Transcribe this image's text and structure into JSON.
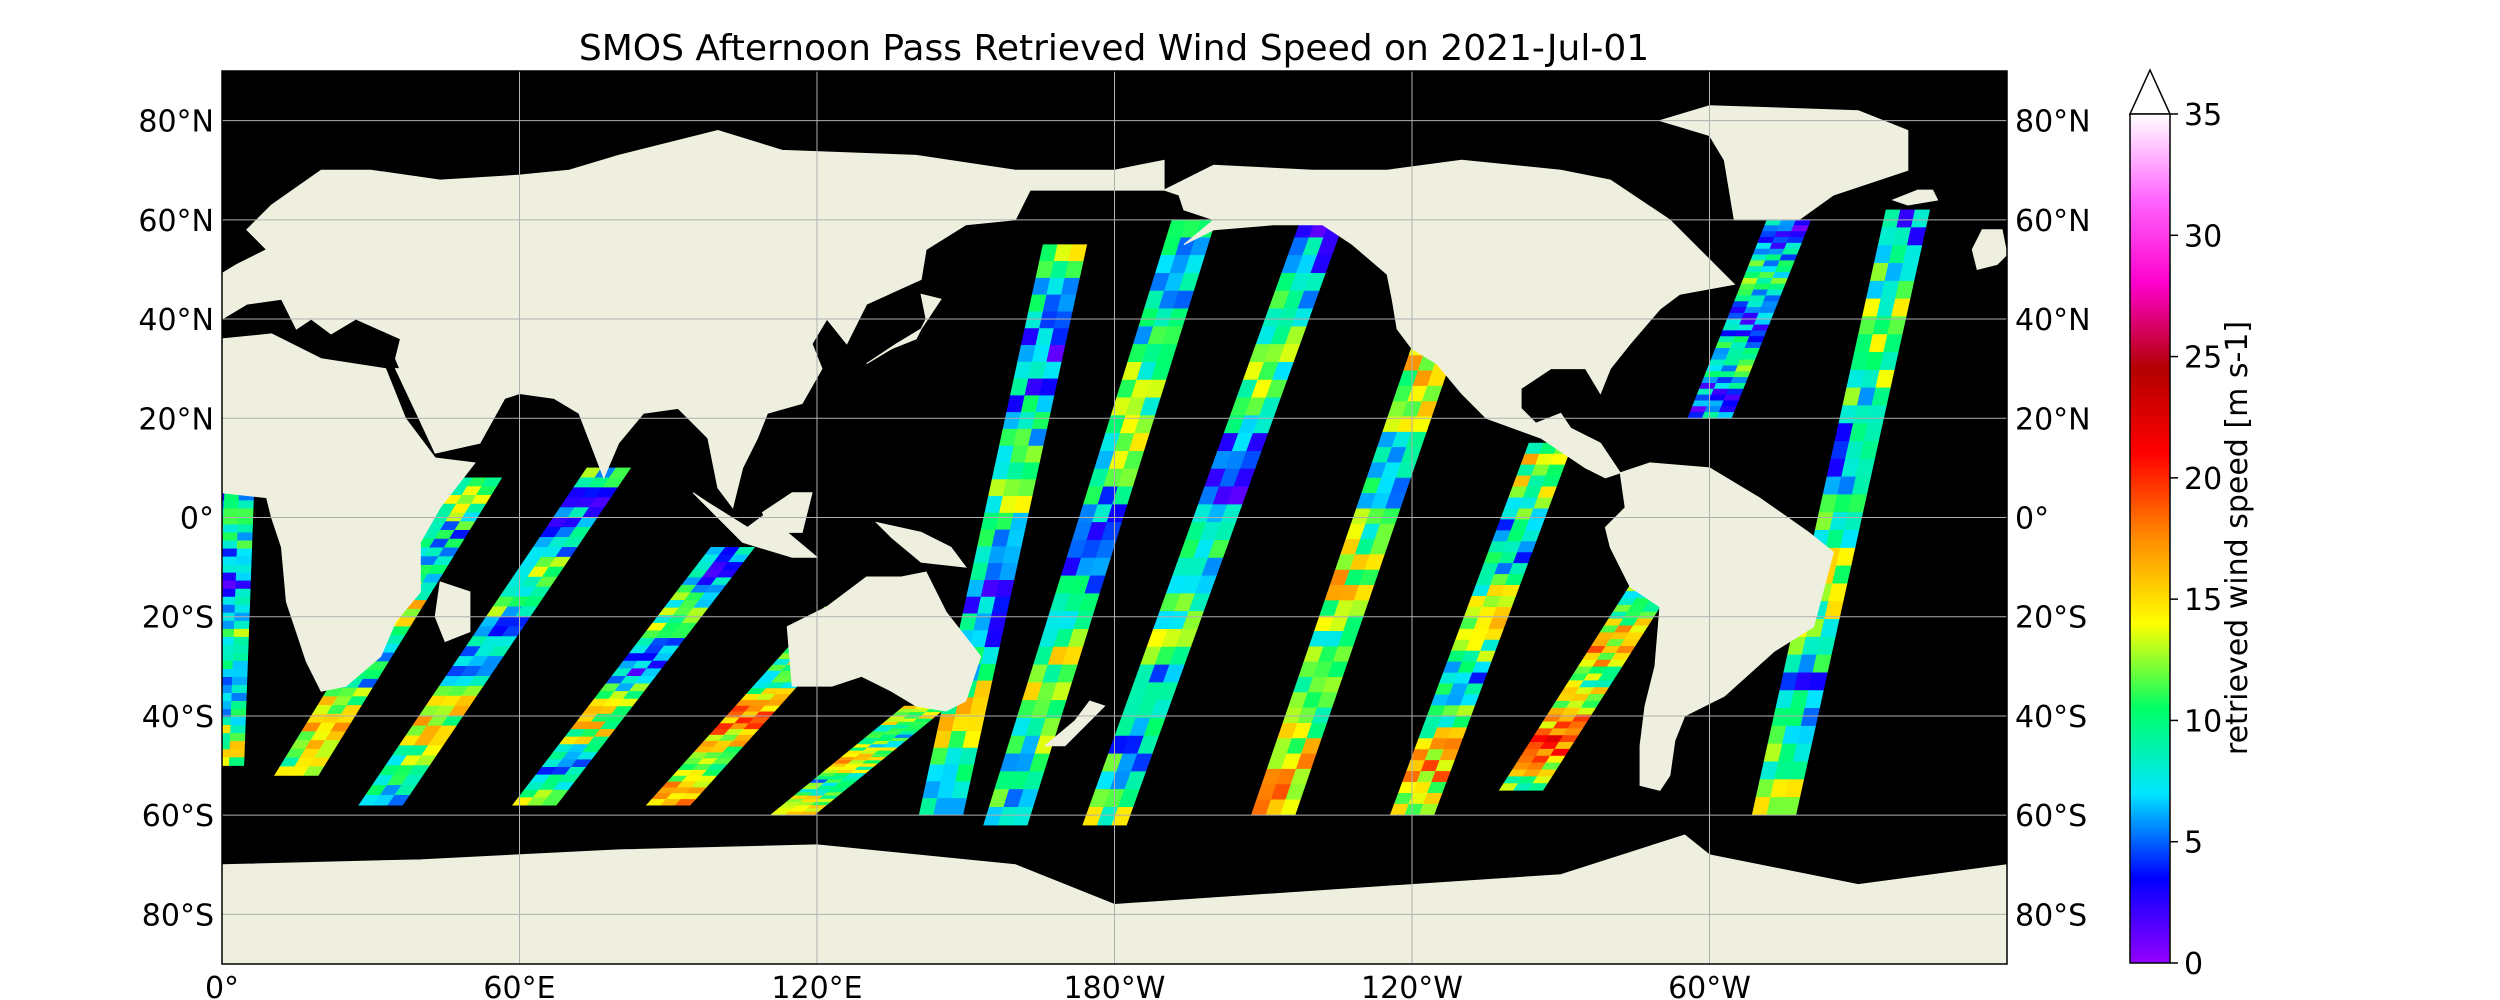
{
  "title": "SMOS Afternoon Pass Retrieved Wind Speed on 2021-Jul-01",
  "lat_ticks": [
    {
      "value": 80,
      "label": "80°N"
    },
    {
      "value": 60,
      "label": "60°N"
    },
    {
      "value": 40,
      "label": "40°N"
    },
    {
      "value": 20,
      "label": "20°N"
    },
    {
      "value": 0,
      "label": "0°"
    },
    {
      "value": -20,
      "label": "20°S"
    },
    {
      "value": -40,
      "label": "40°S"
    },
    {
      "value": -60,
      "label": "60°S"
    },
    {
      "value": -80,
      "label": "80°S"
    }
  ],
  "lon_ticks": [
    {
      "value": 0,
      "label": "0°"
    },
    {
      "value": 60,
      "label": "60°E"
    },
    {
      "value": 120,
      "label": "120°E"
    },
    {
      "value": 180,
      "label": "180°W"
    },
    {
      "value": 240,
      "label": "120°W"
    },
    {
      "value": 300,
      "label": "60°W"
    }
  ],
  "map": {
    "lon_range": [
      0,
      360
    ],
    "lat_range": [
      -90,
      90
    ],
    "grid": true,
    "ocean_color": "#000000",
    "land_color": "#efefdf"
  },
  "colorbar": {
    "label": "retrieved wind speed [m s-1]",
    "range": [
      0,
      35
    ],
    "extend": "max",
    "ticks": [
      {
        "value": 0,
        "label": "0"
      },
      {
        "value": 5,
        "label": "5"
      },
      {
        "value": 10,
        "label": "10"
      },
      {
        "value": 15,
        "label": "15"
      },
      {
        "value": 20,
        "label": "20"
      },
      {
        "value": 25,
        "label": "25"
      },
      {
        "value": 30,
        "label": "30"
      },
      {
        "value": 35,
        "label": "35"
      }
    ],
    "colors": [
      "#9400ff",
      "#0000ff",
      "#00e5ff",
      "#00ff66",
      "#ffff00",
      "#ff8c00",
      "#ff0000",
      "#b30000",
      "#ff00cc",
      "#ff66ff",
      "#ffffff"
    ]
  },
  "swaths": [
    {
      "top": [
        2,
        5
      ],
      "bottom": [
        0,
        -50
      ],
      "mean": 7
    },
    {
      "top": [
        52,
        8
      ],
      "bottom": [
        15,
        -52
      ],
      "mean": 10
    },
    {
      "top": [
        78,
        10
      ],
      "bottom": [
        32,
        -58
      ],
      "mean": 8
    },
    {
      "top": [
        103,
        -6
      ],
      "bottom": [
        63,
        -58
      ],
      "mean": 8
    },
    {
      "top": [
        126,
        -18
      ],
      "bottom": [
        90,
        -58
      ],
      "mean": 12
    },
    {
      "top": [
        142,
        -38
      ],
      "bottom": [
        115,
        -60
      ],
      "mean": 9
    },
    {
      "top": [
        170,
        55
      ],
      "bottom": [
        145,
        -60
      ],
      "mean": 8
    },
    {
      "top": [
        196,
        60
      ],
      "bottom": [
        158,
        -62
      ],
      "mean": 9
    },
    {
      "top": [
        222,
        60
      ],
      "bottom": [
        178,
        -62
      ],
      "mean": 8
    },
    {
      "top": [
        248,
        45
      ],
      "bottom": [
        212,
        -60
      ],
      "mean": 11
    },
    {
      "top": [
        268,
        15
      ],
      "bottom": [
        240,
        -60
      ],
      "mean": 10
    },
    {
      "top": [
        292,
        -8
      ],
      "bottom": [
        262,
        -55
      ],
      "mean": 13
    },
    {
      "top": [
        316,
        60
      ],
      "bottom": [
        300,
        20
      ],
      "mean": 7
    },
    {
      "top": [
        340,
        62
      ],
      "bottom": [
        313,
        -60
      ],
      "mean": 9
    }
  ]
}
